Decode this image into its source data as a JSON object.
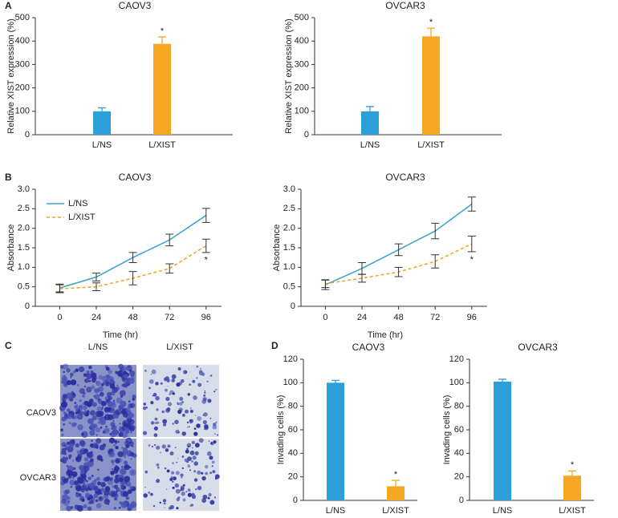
{
  "chart_data": [
    {
      "type": "bar",
      "panel_label": "A",
      "title": "CAOV3",
      "ylabel": "Relative XIST expression (%)",
      "categories": [
        "L/NS",
        "L/XIST"
      ],
      "values": [
        100,
        388
      ],
      "errors": [
        15,
        30
      ],
      "annotations": [
        null,
        "*"
      ],
      "colors": [
        "#2a9fd8",
        "#f5a623"
      ],
      "ylim": [
        0,
        500
      ],
      "yticks": [
        0,
        100,
        200,
        300,
        400,
        500
      ]
    },
    {
      "type": "bar",
      "title": "OVCAR3",
      "ylabel": "Relative XIST expression (%)",
      "categories": [
        "L/NS",
        "L/XIST"
      ],
      "values": [
        100,
        420
      ],
      "errors": [
        20,
        35
      ],
      "annotations": [
        null,
        "*"
      ],
      "colors": [
        "#2a9fd8",
        "#f5a623"
      ],
      "ylim": [
        0,
        500
      ],
      "yticks": [
        0,
        100,
        200,
        300,
        400,
        500
      ]
    },
    {
      "type": "line",
      "panel_label": "B",
      "title": "CAOV3",
      "xlabel": "Time (hr)",
      "ylabel": "Absorbance",
      "x": [
        0,
        24,
        48,
        72,
        96
      ],
      "xlim": [
        -16,
        106
      ],
      "xticks": [
        0,
        24,
        48,
        72,
        96
      ],
      "ylim": [
        0,
        3
      ],
      "yticks": [
        0,
        0.5,
        {
          "value": 1,
          "label": "1.0"
        },
        1.5,
        {
          "value": 2,
          "label": "2.0"
        },
        2.5,
        {
          "value": 3,
          "label": "3.0"
        }
      ],
      "legend": "upper left",
      "series": [
        {
          "name": "L/NS",
          "color": "#3aa0d0",
          "line_style": "solid",
          "values": [
            0.47,
            0.75,
            1.25,
            1.7,
            2.33
          ],
          "errors": [
            0.1,
            0.1,
            0.13,
            0.15,
            0.18
          ],
          "annotations": [
            null,
            null,
            null,
            null,
            null
          ]
        },
        {
          "name": "L/XIST",
          "color": "#f0a020",
          "line_style": "dashed",
          "values": [
            0.45,
            0.5,
            0.72,
            0.97,
            1.55
          ],
          "errors": [
            0.1,
            0.1,
            0.17,
            0.12,
            0.17
          ],
          "annotations": [
            null,
            null,
            null,
            null,
            "*"
          ]
        }
      ]
    },
    {
      "type": "line",
      "title": "OVCAR3",
      "xlabel": "Time (hr)",
      "ylabel": "Absorbance",
      "x": [
        0,
        24,
        48,
        72,
        96
      ],
      "xlim": [
        -16,
        106
      ],
      "xticks": [
        0,
        24,
        48,
        72,
        96
      ],
      "ylim": [
        0,
        3
      ],
      "yticks": [
        0,
        0.5,
        {
          "value": 1,
          "label": "1.0"
        },
        1.5,
        {
          "value": 2,
          "label": "2.0"
        },
        2.5,
        {
          "value": 3,
          "label": "3.0"
        }
      ],
      "series": [
        {
          "color": "#3aa0d0",
          "line_style": "solid",
          "values": [
            0.55,
            0.97,
            1.45,
            1.93,
            2.62
          ],
          "errors": [
            0.12,
            0.15,
            0.15,
            0.2,
            0.18
          ],
          "annotations": [
            null,
            null,
            null,
            null,
            null
          ]
        },
        {
          "color": "#f0a020",
          "line_style": "dashed",
          "values": [
            0.58,
            0.72,
            0.88,
            1.15,
            1.6
          ],
          "errors": [
            0.1,
            0.1,
            0.12,
            0.17,
            0.2
          ],
          "annotations": [
            null,
            null,
            null,
            null,
            "*"
          ]
        }
      ]
    },
    {
      "type": "bar",
      "panel_label": "D",
      "title": "CAOV3",
      "ylabel": "Invading cells (%)",
      "categories": [
        "L/NS",
        "L/XIST"
      ],
      "values": [
        100,
        12
      ],
      "errors": [
        2,
        5
      ],
      "annotations": [
        null,
        "*"
      ],
      "colors": [
        "#2a9fd8",
        "#f5a623"
      ],
      "ylim": [
        0,
        120
      ],
      "yticks": [
        0,
        20,
        40,
        60,
        80,
        100,
        120
      ]
    },
    {
      "type": "bar",
      "title": "OVCAR3",
      "ylabel": "Invading cells (%)",
      "categories": [
        "L/NS",
        "L/XIST"
      ],
      "values": [
        101,
        21
      ],
      "errors": [
        2,
        4
      ],
      "annotations": [
        null,
        "*"
      ],
      "colors": [
        "#2a9fd8",
        "#f5a623"
      ],
      "ylim": [
        0,
        120
      ],
      "yticks": [
        0,
        20,
        40,
        60,
        80,
        100,
        120
      ]
    }
  ],
  "image_panel": {
    "panel_label": "C",
    "columns": [
      "L/NS",
      "L/XIST"
    ],
    "rows": [
      "CAOV3",
      "OVCAR3"
    ]
  }
}
